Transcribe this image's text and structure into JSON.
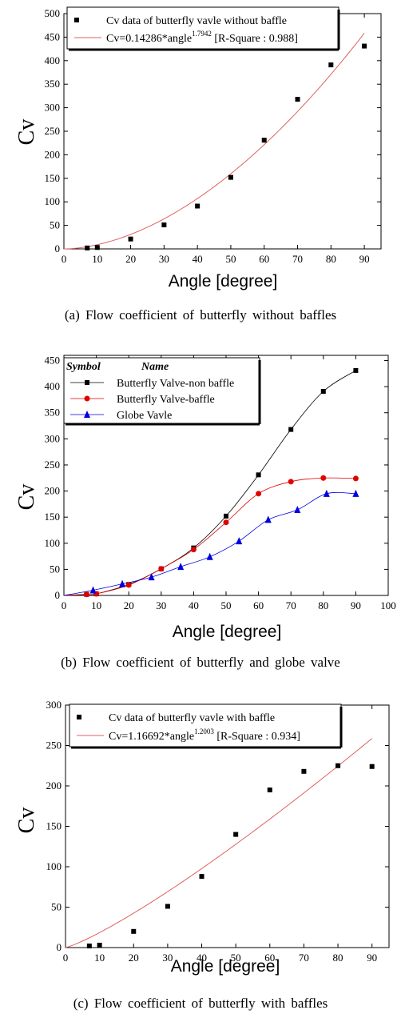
{
  "chart_data": [
    {
      "type": "scatter",
      "panel": "a",
      "caption": "(a)  Flow  coefficient  of  butterfly  without  baffles",
      "xlabel": "Angle [degree]",
      "ylabel": "Cv",
      "xlim": [
        0,
        95
      ],
      "ylim": [
        0,
        500
      ],
      "xticks": [
        0,
        10,
        20,
        30,
        40,
        50,
        60,
        70,
        80,
        90
      ],
      "yticks": [
        0,
        50,
        100,
        150,
        200,
        250,
        300,
        350,
        400,
        450,
        500
      ],
      "grid": false,
      "legend_position": "top-left",
      "series": [
        {
          "name": "Cv data of butterfly vavle without baffle",
          "kind": "markers",
          "marker": "square",
          "color": "#000000",
          "x": [
            7,
            10,
            20,
            30,
            40,
            50,
            60,
            70,
            80,
            90
          ],
          "y": [
            2,
            3,
            21,
            51,
            91,
            152,
            231,
            318,
            391,
            431
          ]
        },
        {
          "name": "Cv=0.14286*angle^1.7942 [R-Square : 0.988]",
          "kind": "fit",
          "color": "#e06060",
          "coef": 0.14286,
          "exponent": 1.7942,
          "x_range": [
            0,
            90
          ]
        }
      ],
      "legend": [
        {
          "text": "Cv data of butterfly vavle without baffle"
        },
        {
          "pre": "Cv=0.14286*angle",
          "sup": "1.7942",
          "post": " [R-Square : 0.988]"
        }
      ]
    },
    {
      "type": "line",
      "panel": "b",
      "caption": "(b)  Flow  coefficient  of  butterfly  and  globe  valve",
      "xlabel": "Angle [degree]",
      "ylabel": "Cv",
      "xlim": [
        0,
        100
      ],
      "ylim": [
        0,
        460
      ],
      "xticks": [
        0,
        10,
        20,
        30,
        40,
        50,
        60,
        70,
        80,
        90,
        100
      ],
      "yticks": [
        0,
        50,
        100,
        150,
        200,
        250,
        300,
        350,
        400,
        450
      ],
      "grid": false,
      "legend_position": "top-left",
      "legend_header": {
        "symbol": "Symbol",
        "name": "Name"
      },
      "series": [
        {
          "name": "Butterfly Valve-non baffle",
          "marker": "square",
          "color": "#000000",
          "x": [
            0,
            7,
            10,
            20,
            30,
            40,
            50,
            60,
            70,
            80,
            90
          ],
          "y": [
            0,
            2,
            3,
            21,
            51,
            91,
            152,
            231,
            318,
            391,
            431
          ]
        },
        {
          "name": "Butterfly Valve-baffle",
          "marker": "circle",
          "color": "#e00000",
          "x": [
            0,
            7,
            10,
            20,
            30,
            40,
            50,
            60,
            70,
            80,
            90
          ],
          "y": [
            0,
            2,
            3,
            20,
            51,
            88,
            140,
            195,
            218,
            225,
            224
          ]
        },
        {
          "name": "Globe Vavle",
          "marker": "triangle",
          "color": "#0000e0",
          "x": [
            0,
            9,
            18,
            27,
            36,
            45,
            54,
            63,
            72,
            81,
            90
          ],
          "y": [
            0,
            10,
            22,
            35,
            55,
            74,
            104,
            145,
            164,
            195,
            195
          ]
        }
      ]
    },
    {
      "type": "scatter",
      "panel": "c",
      "caption": "(c)  Flow  coefficient  of  butterfly  with  baffles",
      "xlabel": "Angle [degree]",
      "ylabel": "Cv",
      "xlim": [
        0,
        95
      ],
      "ylim": [
        0,
        300
      ],
      "xticks": [
        0,
        10,
        20,
        30,
        40,
        50,
        60,
        70,
        80,
        90
      ],
      "yticks": [
        0,
        50,
        100,
        150,
        200,
        250,
        300
      ],
      "grid": false,
      "legend_position": "top-left",
      "series": [
        {
          "name": "Cv data of butterfly vavle with baffle",
          "kind": "markers",
          "marker": "square",
          "color": "#000000",
          "x": [
            7,
            10,
            20,
            30,
            40,
            50,
            60,
            70,
            80,
            90
          ],
          "y": [
            2,
            3,
            20,
            51,
            88,
            140,
            195,
            218,
            225,
            224
          ]
        },
        {
          "name": "Cv=1.16692*angle^1.2003 [R-Square : 0.934]",
          "kind": "fit",
          "color": "#e06060",
          "coef": 1.16692,
          "exponent": 1.2003,
          "x_range": [
            0,
            90
          ]
        }
      ],
      "legend": [
        {
          "text": "Cv data of butterfly vavle with baffle"
        },
        {
          "pre": "Cv=1.16692*angle",
          "sup": "1.2003",
          "post": " [R-Square : 0.934]"
        }
      ]
    }
  ]
}
